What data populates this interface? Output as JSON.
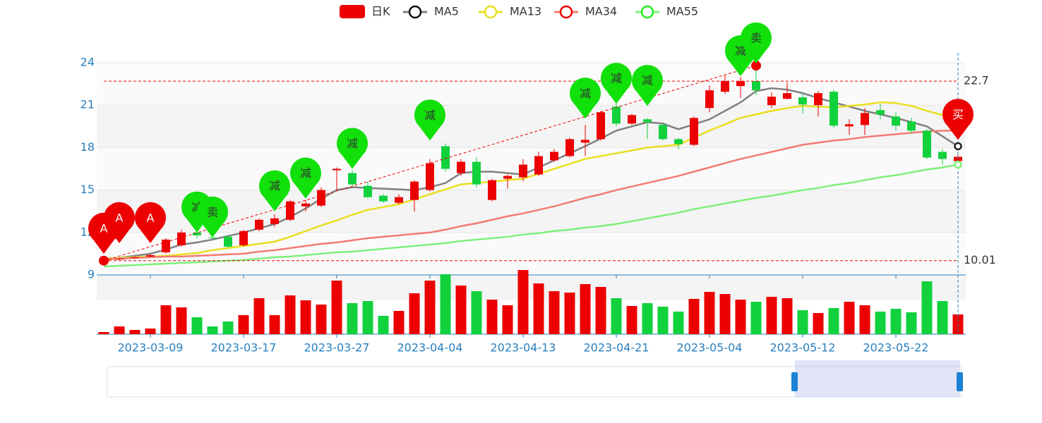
{
  "chart_data": {
    "type": "candlestick",
    "categories": [
      null,
      null,
      null,
      "2023-03-09",
      null,
      null,
      null,
      null,
      null,
      "2023-03-17",
      null,
      null,
      null,
      null,
      null,
      "2023-03-27",
      null,
      null,
      null,
      null,
      null,
      "2023-04-04",
      null,
      null,
      null,
      null,
      null,
      "2023-04-13",
      null,
      null,
      null,
      null,
      null,
      "2023-04-21",
      null,
      null,
      null,
      null,
      null,
      "2023-05-04",
      null,
      null,
      null,
      null,
      null,
      "2023-05-12",
      null,
      null,
      null,
      null,
      null,
      "2023-05-22",
      null,
      null,
      null,
      null
    ],
    "ylim": [
      9,
      24
    ],
    "yticks": [
      9,
      12,
      15,
      18,
      21,
      24
    ],
    "grid": true,
    "up_color": "#ec0000",
    "down_color": "#11d13c",
    "candles": {
      "name": "日K",
      "open": [
        10.0,
        10.1,
        10.2,
        10.3,
        10.6,
        11.1,
        12.0,
        11.65,
        11.7,
        11.1,
        12.2,
        12.6,
        12.9,
        13.85,
        13.9,
        16.4,
        16.2,
        15.3,
        14.6,
        14.1,
        14.3,
        15.0,
        18.1,
        16.2,
        17.0,
        14.3,
        15.8,
        15.9,
        16.1,
        17.1,
        17.4,
        18.35,
        18.6,
        20.9,
        19.7,
        20.0,
        19.6,
        18.6,
        18.2,
        20.8,
        21.95,
        22.35,
        22.7,
        21.0,
        21.45,
        21.55,
        21.0,
        21.95,
        19.5,
        19.6,
        20.65,
        20.2,
        19.85,
        19.2,
        17.7,
        17.05
      ],
      "close": [
        10.05,
        10.15,
        10.25,
        10.4,
        11.5,
        12.0,
        11.8,
        11.6,
        11.0,
        12.1,
        12.9,
        13.0,
        14.2,
        14.05,
        15.0,
        16.5,
        15.4,
        14.5,
        14.2,
        14.5,
        15.6,
        16.9,
        16.5,
        17.0,
        15.4,
        15.7,
        16.0,
        16.8,
        17.4,
        17.7,
        18.6,
        18.55,
        20.5,
        19.7,
        20.3,
        19.8,
        18.6,
        18.25,
        20.1,
        22.05,
        22.7,
        22.7,
        22.05,
        21.6,
        21.85,
        21.05,
        21.85,
        19.55,
        19.65,
        20.45,
        20.35,
        19.55,
        19.2,
        17.3,
        17.2,
        17.35
      ],
      "low": [
        9.95,
        10.05,
        10.15,
        10.25,
        10.5,
        11.0,
        11.6,
        11.5,
        10.9,
        11.0,
        12.1,
        12.4,
        12.8,
        13.5,
        13.8,
        15.0,
        15.3,
        14.4,
        14.1,
        14.0,
        13.5,
        14.9,
        16.3,
        16.0,
        15.2,
        14.2,
        15.1,
        15.6,
        16.0,
        17.0,
        17.3,
        17.4,
        18.5,
        19.5,
        19.6,
        18.6,
        18.5,
        17.9,
        18.1,
        20.5,
        21.8,
        21.5,
        21.7,
        20.8,
        21.4,
        20.4,
        20.2,
        19.4,
        18.9,
        18.9,
        20.0,
        19.2,
        19.0,
        17.2,
        16.8,
        16.9
      ],
      "high": [
        10.1,
        10.2,
        10.3,
        10.5,
        11.6,
        12.2,
        12.2,
        11.8,
        11.8,
        12.2,
        13.0,
        13.3,
        14.3,
        14.3,
        15.2,
        16.6,
        16.4,
        15.6,
        14.7,
        14.7,
        15.7,
        17.2,
        18.3,
        17.2,
        17.3,
        15.8,
        16.1,
        17.2,
        17.7,
        17.9,
        18.7,
        19.6,
        20.6,
        21.2,
        20.4,
        20.1,
        19.7,
        18.7,
        20.2,
        22.4,
        23.1,
        23.0,
        23.8,
        21.9,
        22.6,
        21.8,
        22.0,
        22.1,
        20.0,
        20.8,
        21.1,
        20.5,
        20.1,
        19.3,
        17.9,
        17.5
      ]
    },
    "volume": [
      3,
      11,
      6,
      8,
      41,
      38,
      24,
      11,
      18,
      27,
      51,
      27,
      55,
      48,
      42,
      76,
      44,
      47,
      26,
      33,
      58,
      76,
      85,
      69,
      61,
      49,
      41,
      91,
      72,
      61,
      59,
      71,
      67,
      51,
      40,
      44,
      39,
      32,
      50,
      60,
      57,
      49,
      46,
      53,
      51,
      34,
      30,
      37,
      46,
      41,
      32,
      36,
      31,
      75,
      47,
      28
    ],
    "series": [
      {
        "name": "MA5",
        "color": "#808080",
        "values": [
          10.1,
          10.2,
          10.35,
          10.5,
          10.8,
          11.15,
          11.3,
          11.5,
          11.75,
          12.0,
          12.3,
          12.6,
          13.1,
          13.7,
          14.4,
          15.0,
          15.2,
          15.15,
          15.1,
          15.05,
          15.0,
          15.2,
          15.5,
          16.2,
          16.3,
          16.3,
          16.2,
          16.1,
          16.6,
          17.1,
          17.6,
          18.1,
          18.65,
          19.2,
          19.5,
          19.8,
          19.7,
          19.3,
          19.65,
          20.0,
          20.6,
          21.2,
          22.0,
          22.2,
          22.1,
          21.85,
          21.5,
          21.2,
          20.9,
          20.6,
          20.35,
          20.1,
          19.8,
          19.5,
          18.8,
          18.1
        ]
      },
      {
        "name": "MA13",
        "color": "#e8e020",
        "values": [
          10.15,
          10.2,
          10.25,
          10.3,
          10.35,
          10.45,
          10.55,
          10.75,
          10.9,
          11.05,
          11.2,
          11.35,
          11.7,
          12.1,
          12.5,
          12.85,
          13.25,
          13.6,
          13.8,
          14.0,
          14.35,
          14.7,
          15.05,
          15.4,
          15.5,
          15.6,
          15.7,
          15.8,
          16.15,
          16.5,
          16.85,
          17.2,
          17.4,
          17.6,
          17.8,
          18.0,
          18.1,
          18.2,
          18.7,
          19.2,
          19.65,
          20.1,
          20.35,
          20.6,
          20.8,
          20.95,
          20.9,
          20.85,
          20.95,
          21.05,
          21.2,
          21.15,
          20.95,
          20.6,
          20.3,
          20.0
        ]
      },
      {
        "name": "MA34",
        "color": "#f47a74",
        "values": [
          10.1,
          10.15,
          10.2,
          10.25,
          10.3,
          10.3,
          10.35,
          10.4,
          10.45,
          10.5,
          10.65,
          10.75,
          10.9,
          11.05,
          11.2,
          11.3,
          11.45,
          11.6,
          11.7,
          11.8,
          11.9,
          12.0,
          12.2,
          12.45,
          12.65,
          12.9,
          13.15,
          13.35,
          13.6,
          13.85,
          14.15,
          14.45,
          14.7,
          15.0,
          15.25,
          15.5,
          15.75,
          16.0,
          16.3,
          16.6,
          16.9,
          17.2,
          17.45,
          17.7,
          17.95,
          18.2,
          18.35,
          18.5,
          18.6,
          18.75,
          18.85,
          18.95,
          19.05,
          19.15,
          19.2,
          19.2
        ]
      },
      {
        "name": "MA55",
        "color": "#7ef07a",
        "values": [
          9.6,
          9.65,
          9.7,
          9.75,
          9.8,
          9.85,
          9.9,
          9.95,
          10.0,
          10.05,
          10.15,
          10.25,
          10.3,
          10.4,
          10.5,
          10.6,
          10.65,
          10.75,
          10.85,
          10.95,
          11.05,
          11.15,
          11.25,
          11.4,
          11.5,
          11.6,
          11.7,
          11.85,
          11.95,
          12.1,
          12.2,
          12.35,
          12.45,
          12.6,
          12.8,
          13.0,
          13.2,
          13.4,
          13.65,
          13.85,
          14.05,
          14.25,
          14.45,
          14.6,
          14.8,
          15.0,
          15.15,
          15.35,
          15.5,
          15.7,
          15.9,
          16.05,
          16.25,
          16.45,
          16.6,
          16.8
        ]
      }
    ],
    "markers": [
      {
        "label": "A",
        "index": 0,
        "value": 10.5,
        "color": "#ec0000"
      },
      {
        "label": "A",
        "index": 1,
        "value": 11.25,
        "color": "#ec0000"
      },
      {
        "label": "A",
        "index": 3,
        "value": 11.25,
        "color": "#ec0000"
      },
      {
        "label": "减",
        "index": 6,
        "value": 12.0,
        "color": "#11e00a"
      },
      {
        "label": "卖",
        "index": 7,
        "value": 11.65,
        "color": "#11e00a"
      },
      {
        "label": "减",
        "index": 11,
        "value": 13.5,
        "color": "#11e00a"
      },
      {
        "label": "减",
        "index": 13,
        "value": 14.4,
        "color": "#11e00a"
      },
      {
        "label": "减",
        "index": 16,
        "value": 16.5,
        "color": "#11e00a"
      },
      {
        "label": "减",
        "index": 21,
        "value": 18.5,
        "color": "#11e00a"
      },
      {
        "label": "减",
        "index": 31,
        "value": 20.05,
        "color": "#11e00a"
      },
      {
        "label": "减",
        "index": 33,
        "value": 21.1,
        "color": "#11e00a"
      },
      {
        "label": "减",
        "index": 35,
        "value": 20.95,
        "color": "#11e00a"
      },
      {
        "label": "减",
        "index": 41,
        "value": 23.05,
        "color": "#11e00a"
      },
      {
        "label": "卖",
        "index": 42,
        "value": 23.95,
        "color": "#11e00a"
      },
      {
        "label": "买",
        "index": 55,
        "value": 18.55,
        "color": "#ec0000"
      }
    ],
    "hlines": [
      22.7,
      10.01
    ],
    "trend_line": {
      "from": [
        0,
        10.01
      ],
      "to": [
        42,
        23.8
      ]
    },
    "points": [
      {
        "index": 0,
        "value": 10.01
      },
      {
        "index": 42,
        "value": 23.8
      }
    ]
  }
}
